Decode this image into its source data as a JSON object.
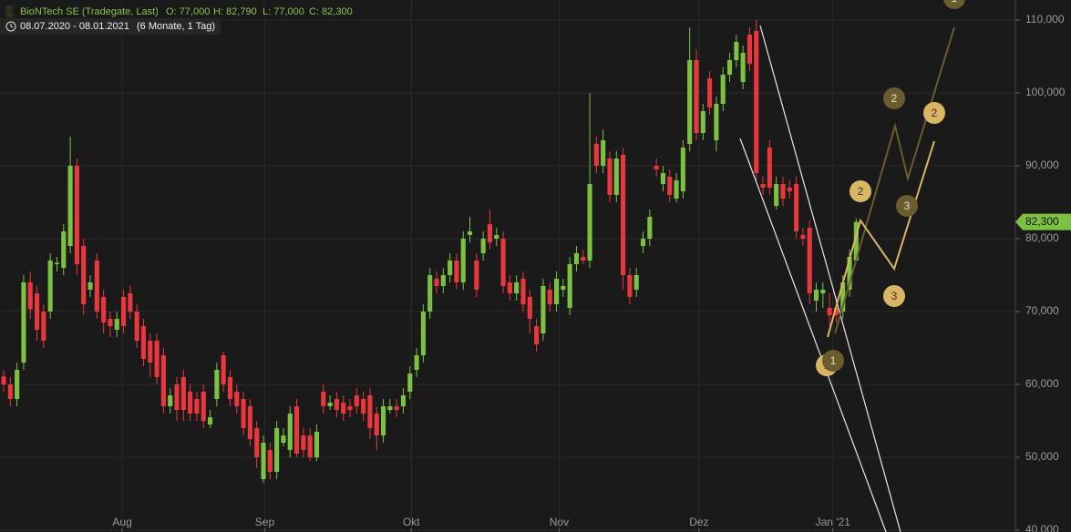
{
  "chart_data": {
    "type": "candlestick",
    "title": "BioNTech SE (Tradegate, Last)",
    "quote": [
      "O: 77,000",
      "H: 82,790",
      "L: 77,000",
      "C: 82,300"
    ],
    "period": "08.07.2020 - 08.01.2021",
    "period_note": "(6 Monate, 1 Tag)",
    "up_color": "#7cc142",
    "down_color": "#e8383d",
    "grid": true,
    "xlim": [
      -0.55,
      151.9
    ],
    "xticks": [
      {
        "value": 17.8,
        "label": "Aug"
      },
      {
        "value": 39.2,
        "label": "Sep"
      },
      {
        "value": 61.2,
        "label": "Okt"
      },
      {
        "value": 83.4,
        "label": "Nov"
      },
      {
        "value": 104.4,
        "label": "Dez"
      },
      {
        "value": 124.5,
        "label": "Jan '21"
      }
    ],
    "ylim": [
      39750,
      112750
    ],
    "yticks": [
      {
        "value": 40000,
        "label": "40,000"
      },
      {
        "value": 50000,
        "label": "50,000"
      },
      {
        "value": 60000,
        "label": "60,000"
      },
      {
        "value": 70000,
        "label": "70,000"
      },
      {
        "value": 80000,
        "label": "80,000"
      },
      {
        "value": 90000,
        "label": "90,000"
      },
      {
        "value": 100000,
        "label": "100,000"
      },
      {
        "value": 110000,
        "label": "110,000"
      }
    ],
    "last_price": {
      "value": 82300,
      "label": "82,300"
    },
    "wave_labels": [
      "1",
      "2",
      "3",
      "1",
      "2",
      "3",
      "2",
      "1"
    ],
    "open": [
      61100,
      60000,
      58000,
      63000,
      74000,
      72500,
      70000,
      70000,
      76500,
      76000,
      79000,
      90000,
      79000,
      73000,
      77000,
      72000,
      69000,
      67500,
      72000,
      72500,
      70000,
      68000,
      66000,
      66000,
      64000,
      57000,
      60000,
      61000,
      59000,
      58000,
      59000,
      54500,
      58000,
      64000,
      61000,
      59000,
      58000,
      57000,
      54000,
      47000,
      51000,
      48000,
      52000,
      51000,
      57000,
      53000,
      53000,
      50000,
      59000,
      57000,
      58000,
      57500,
      57000,
      58500,
      58000,
      58500,
      56000,
      53000,
      56500,
      57000,
      57000,
      59000,
      62000,
      64000,
      70000,
      74500,
      73500,
      75000,
      77000,
      74000,
      80500,
      77000,
      78000,
      82000,
      80000,
      80000,
      74000,
      72500,
      74500,
      72000,
      68000,
      67000,
      73000,
      71000,
      73000,
      70500,
      76500,
      77500,
      77000,
      93000,
      90000,
      91000,
      86000,
      91500,
      75000,
      73000,
      79000,
      80000,
      90000,
      87500,
      88500,
      85500,
      86500,
      93000,
      104500,
      94500,
      102000,
      93500,
      98500,
      102500,
      104500,
      101500,
      108000,
      108500,
      87500,
      92500,
      84500,
      87500,
      87000,
      87500,
      80500,
      81500,
      71500,
      72500,
      70500,
      70500,
      70000,
      73000,
      77000
    ],
    "high": [
      62000,
      61000,
      63000,
      75000,
      75500,
      73500,
      71000,
      78000,
      77500,
      82000,
      94000,
      91000,
      80000,
      75000,
      78000,
      73000,
      70000,
      70000,
      73000,
      73500,
      71000,
      69000,
      67000,
      67000,
      65000,
      59500,
      61000,
      62000,
      60000,
      59000,
      60000,
      56500,
      63000,
      64500,
      62000,
      60000,
      59000,
      58000,
      55000,
      53000,
      52000,
      55000,
      54000,
      57000,
      58000,
      54000,
      54000,
      54500,
      60000,
      58500,
      59000,
      58500,
      58000,
      59500,
      59000,
      59500,
      57000,
      58000,
      58000,
      58000,
      59500,
      62500,
      65000,
      71000,
      76000,
      75500,
      76000,
      78000,
      78000,
      81000,
      83000,
      78000,
      81000,
      84000,
      81500,
      81000,
      75000,
      75000,
      75500,
      73000,
      69000,
      74500,
      74000,
      75500,
      74500,
      77500,
      79000,
      78500,
      100000,
      94000,
      95000,
      92000,
      92000,
      92500,
      76000,
      76000,
      81000,
      84000,
      91000,
      90000,
      89500,
      89000,
      93500,
      109000,
      106000,
      98500,
      103000,
      99500,
      103500,
      105500,
      108000,
      106500,
      109000,
      110000,
      88500,
      93500,
      88500,
      88500,
      88000,
      88500,
      81500,
      82500,
      74000,
      74000,
      72500,
      72000,
      75000,
      78500,
      82790
    ],
    "low": [
      59000,
      57000,
      57000,
      62000,
      69000,
      66000,
      65000,
      69000,
      75500,
      75000,
      78000,
      75000,
      69500,
      72000,
      69000,
      67000,
      66500,
      66500,
      67000,
      69000,
      65000,
      62500,
      61000,
      60000,
      56000,
      56000,
      55000,
      55000,
      55000,
      55000,
      54000,
      54000,
      57000,
      59000,
      57000,
      56000,
      53000,
      51500,
      48500,
      46500,
      47000,
      47000,
      51500,
      50000,
      50000,
      50000,
      49500,
      49500,
      56000,
      56500,
      55500,
      55000,
      55500,
      56000,
      55000,
      52500,
      51000,
      52000,
      56000,
      55500,
      56000,
      58000,
      61000,
      63000,
      69000,
      72500,
      72500,
      74000,
      73000,
      73000,
      79500,
      72000,
      77000,
      78500,
      79000,
      72500,
      71500,
      71500,
      70000,
      67000,
      64500,
      66000,
      70000,
      70000,
      72000,
      69500,
      75500,
      76500,
      76000,
      89000,
      89000,
      85000,
      85000,
      73000,
      71000,
      72000,
      78000,
      79000,
      88500,
      86500,
      85000,
      85000,
      85500,
      92000,
      93500,
      93500,
      97000,
      92000,
      97500,
      101500,
      103500,
      100500,
      103000,
      88000,
      86000,
      86000,
      84000,
      84500,
      85500,
      80000,
      79000,
      71000,
      70000,
      70500,
      68000,
      68500,
      69000,
      72000,
      77000
    ],
    "close": [
      60000,
      58000,
      62000,
      74000,
      70300,
      67500,
      66000,
      77000,
      76700,
      81000,
      90000,
      76500,
      71000,
      74000,
      70000,
      68500,
      68000,
      69000,
      68000,
      70000,
      66000,
      63500,
      63000,
      61000,
      57000,
      58500,
      56500,
      56500,
      56000,
      56000,
      55000,
      55500,
      62000,
      60000,
      58000,
      57000,
      54000,
      52500,
      50000,
      52000,
      48000,
      54000,
      53000,
      56000,
      50500,
      51000,
      50000,
      53500,
      57000,
      57500,
      56500,
      56000,
      56500,
      57000,
      56000,
      54000,
      53000,
      57000,
      57000,
      56500,
      58500,
      61500,
      64000,
      70000,
      75000,
      73500,
      75000,
      77000,
      74000,
      80000,
      81000,
      73000,
      80000,
      79500,
      80500,
      73500,
      72500,
      74000,
      71000,
      69000,
      65500,
      73500,
      71000,
      74500,
      73500,
      76500,
      78000,
      77000,
      87500,
      90000,
      93500,
      86000,
      91000,
      75000,
      72000,
      75000,
      80000,
      83000,
      89500,
      89000,
      86000,
      88000,
      92500,
      104500,
      94500,
      97500,
      98000,
      98500,
      102500,
      104500,
      107000,
      105500,
      104000,
      89000,
      87000,
      87000,
      87500,
      85500,
      86500,
      81000,
      80000,
      72500,
      73000,
      73000,
      69500,
      69500,
      74000,
      77500,
      82300
    ]
  }
}
